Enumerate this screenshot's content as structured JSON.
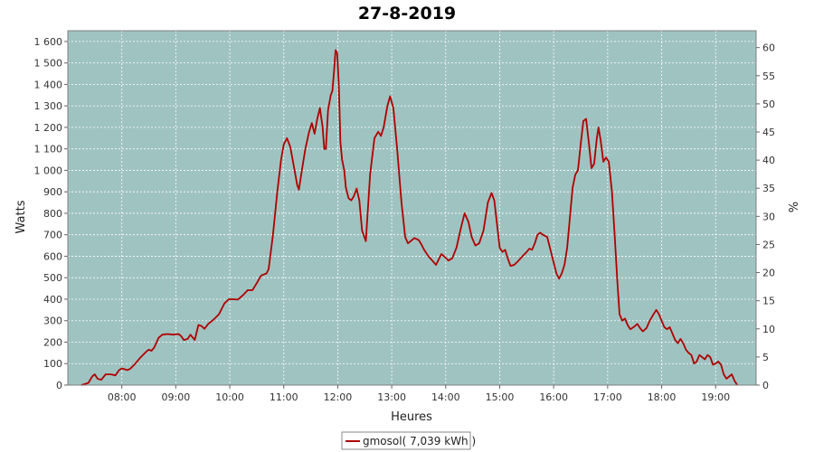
{
  "chart_data": {
    "type": "line",
    "title": "27-8-2019",
    "xlabel": "Heures",
    "ylabel": "Watts",
    "y2label": "%",
    "xlim": [
      7.0,
      19.75
    ],
    "ylim": [
      0,
      1650
    ],
    "y2lim": [
      0,
      63
    ],
    "x_ticks": [
      "08:00",
      "09:00",
      "10:00",
      "11:00",
      "12:00",
      "13:00",
      "14:00",
      "15:00",
      "16:00",
      "17:00",
      "18:00",
      "19:00"
    ],
    "y_ticks": [
      "0",
      "100",
      "200",
      "300",
      "400",
      "500",
      "600",
      "700",
      "800",
      "900",
      "1 000",
      "1 100",
      "1 200",
      "1 300",
      "1 400",
      "1 500",
      "1 600"
    ],
    "y2_ticks": [
      "0",
      "5",
      "10",
      "15",
      "20",
      "25",
      "30",
      "35",
      "40",
      "45",
      "50",
      "55",
      "60"
    ],
    "grid": true,
    "background_color": "#9fc3c1",
    "series": [
      {
        "name": "gmosol",
        "legend": "gmosol( 7,039 kWh )",
        "color": "#b00000",
        "points": [
          [
            7.25,
            0
          ],
          [
            7.38,
            10
          ],
          [
            7.45,
            40
          ],
          [
            7.5,
            50
          ],
          [
            7.55,
            30
          ],
          [
            7.62,
            25
          ],
          [
            7.7,
            50
          ],
          [
            7.8,
            50
          ],
          [
            7.88,
            45
          ],
          [
            7.95,
            70
          ],
          [
            8.0,
            78
          ],
          [
            8.1,
            70
          ],
          [
            8.15,
            75
          ],
          [
            8.25,
            100
          ],
          [
            8.35,
            130
          ],
          [
            8.45,
            155
          ],
          [
            8.5,
            165
          ],
          [
            8.55,
            160
          ],
          [
            8.6,
            175
          ],
          [
            8.68,
            220
          ],
          [
            8.75,
            235
          ],
          [
            8.85,
            238
          ],
          [
            8.95,
            235
          ],
          [
            9.05,
            238
          ],
          [
            9.1,
            228
          ],
          [
            9.15,
            210
          ],
          [
            9.22,
            215
          ],
          [
            9.27,
            235
          ],
          [
            9.35,
            210
          ],
          [
            9.42,
            280
          ],
          [
            9.48,
            275
          ],
          [
            9.53,
            262
          ],
          [
            9.6,
            285
          ],
          [
            9.7,
            305
          ],
          [
            9.8,
            330
          ],
          [
            9.9,
            380
          ],
          [
            9.98,
            400
          ],
          [
            10.05,
            400
          ],
          [
            10.15,
            398
          ],
          [
            10.25,
            420
          ],
          [
            10.33,
            442
          ],
          [
            10.42,
            442
          ],
          [
            10.5,
            475
          ],
          [
            10.58,
            510
          ],
          [
            10.68,
            520
          ],
          [
            10.72,
            540
          ],
          [
            10.8,
            700
          ],
          [
            10.88,
            900
          ],
          [
            10.95,
            1050
          ],
          [
            11.0,
            1120
          ],
          [
            11.06,
            1150
          ],
          [
            11.12,
            1110
          ],
          [
            11.2,
            1000
          ],
          [
            11.25,
            930
          ],
          [
            11.28,
            910
          ],
          [
            11.33,
            990
          ],
          [
            11.4,
            1100
          ],
          [
            11.47,
            1180
          ],
          [
            11.52,
            1220
          ],
          [
            11.57,
            1170
          ],
          [
            11.62,
            1240
          ],
          [
            11.67,
            1290
          ],
          [
            11.72,
            1200
          ],
          [
            11.75,
            1100
          ],
          [
            11.78,
            1100
          ],
          [
            11.82,
            1280
          ],
          [
            11.87,
            1350
          ],
          [
            11.9,
            1370
          ],
          [
            11.93,
            1460
          ],
          [
            11.96,
            1560
          ],
          [
            11.99,
            1545
          ],
          [
            12.02,
            1400
          ],
          [
            12.05,
            1130
          ],
          [
            12.08,
            1050
          ],
          [
            12.12,
            1000
          ],
          [
            12.15,
            920
          ],
          [
            12.2,
            870
          ],
          [
            12.25,
            860
          ],
          [
            12.3,
            880
          ],
          [
            12.35,
            915
          ],
          [
            12.4,
            860
          ],
          [
            12.45,
            720
          ],
          [
            12.52,
            670
          ],
          [
            12.6,
            980
          ],
          [
            12.68,
            1150
          ],
          [
            12.75,
            1180
          ],
          [
            12.8,
            1160
          ],
          [
            12.85,
            1200
          ],
          [
            12.92,
            1300
          ],
          [
            12.97,
            1345
          ],
          [
            13.03,
            1290
          ],
          [
            13.1,
            1100
          ],
          [
            13.18,
            850
          ],
          [
            13.25,
            690
          ],
          [
            13.3,
            660
          ],
          [
            13.35,
            670
          ],
          [
            13.42,
            685
          ],
          [
            13.5,
            675
          ],
          [
            13.55,
            655
          ],
          [
            13.6,
            630
          ],
          [
            13.68,
            600
          ],
          [
            13.75,
            580
          ],
          [
            13.82,
            560
          ],
          [
            13.88,
            590
          ],
          [
            13.92,
            610
          ],
          [
            13.97,
            600
          ],
          [
            14.05,
            580
          ],
          [
            14.12,
            590
          ],
          [
            14.2,
            640
          ],
          [
            14.28,
            730
          ],
          [
            14.35,
            800
          ],
          [
            14.42,
            760
          ],
          [
            14.48,
            690
          ],
          [
            14.55,
            650
          ],
          [
            14.62,
            660
          ],
          [
            14.7,
            720
          ],
          [
            14.78,
            850
          ],
          [
            14.85,
            895
          ],
          [
            14.9,
            860
          ],
          [
            14.95,
            750
          ],
          [
            15.0,
            640
          ],
          [
            15.05,
            620
          ],
          [
            15.1,
            630
          ],
          [
            15.15,
            590
          ],
          [
            15.2,
            555
          ],
          [
            15.27,
            560
          ],
          [
            15.35,
            580
          ],
          [
            15.42,
            600
          ],
          [
            15.5,
            620
          ],
          [
            15.55,
            635
          ],
          [
            15.6,
            630
          ],
          [
            15.65,
            660
          ],
          [
            15.7,
            700
          ],
          [
            15.75,
            710
          ],
          [
            15.8,
            700
          ],
          [
            15.88,
            690
          ],
          [
            15.95,
            620
          ],
          [
            16.0,
            570
          ],
          [
            16.05,
            520
          ],
          [
            16.1,
            495
          ],
          [
            16.15,
            520
          ],
          [
            16.2,
            560
          ],
          [
            16.25,
            640
          ],
          [
            16.3,
            780
          ],
          [
            16.35,
            920
          ],
          [
            16.4,
            980
          ],
          [
            16.45,
            1000
          ],
          [
            16.5,
            1120
          ],
          [
            16.55,
            1230
          ],
          [
            16.6,
            1240
          ],
          [
            16.65,
            1130
          ],
          [
            16.7,
            1010
          ],
          [
            16.75,
            1030
          ],
          [
            16.8,
            1150
          ],
          [
            16.83,
            1200
          ],
          [
            16.87,
            1140
          ],
          [
            16.92,
            1040
          ],
          [
            16.97,
            1060
          ],
          [
            17.02,
            1040
          ],
          [
            17.08,
            900
          ],
          [
            17.13,
            700
          ],
          [
            17.18,
            480
          ],
          [
            17.22,
            330
          ],
          [
            17.27,
            300
          ],
          [
            17.32,
            310
          ],
          [
            17.37,
            280
          ],
          [
            17.42,
            260
          ],
          [
            17.48,
            270
          ],
          [
            17.55,
            285
          ],
          [
            17.6,
            265
          ],
          [
            17.65,
            250
          ],
          [
            17.72,
            265
          ],
          [
            17.78,
            300
          ],
          [
            17.85,
            330
          ],
          [
            17.9,
            350
          ],
          [
            17.95,
            330
          ],
          [
            18.0,
            300
          ],
          [
            18.05,
            270
          ],
          [
            18.1,
            260
          ],
          [
            18.15,
            270
          ],
          [
            18.2,
            240
          ],
          [
            18.25,
            210
          ],
          [
            18.3,
            195
          ],
          [
            18.35,
            215
          ],
          [
            18.4,
            195
          ],
          [
            18.45,
            165
          ],
          [
            18.5,
            150
          ],
          [
            18.55,
            140
          ],
          [
            18.6,
            100
          ],
          [
            18.65,
            110
          ],
          [
            18.7,
            140
          ],
          [
            18.75,
            130
          ],
          [
            18.8,
            120
          ],
          [
            18.85,
            140
          ],
          [
            18.9,
            130
          ],
          [
            18.95,
            95
          ],
          [
            19.0,
            100
          ],
          [
            19.05,
            110
          ],
          [
            19.1,
            95
          ],
          [
            19.15,
            50
          ],
          [
            19.2,
            30
          ],
          [
            19.25,
            40
          ],
          [
            19.3,
            50
          ],
          [
            19.35,
            20
          ],
          [
            19.4,
            0
          ]
        ]
      }
    ]
  }
}
